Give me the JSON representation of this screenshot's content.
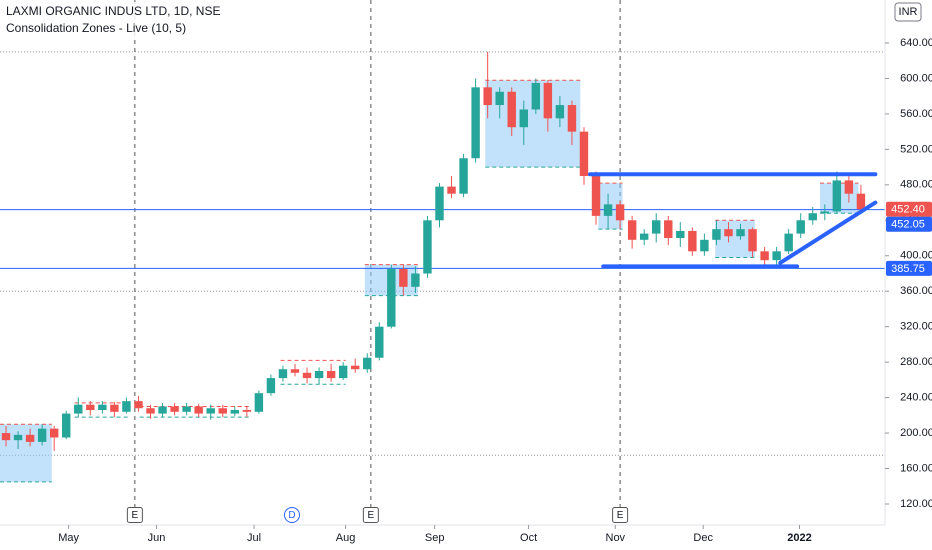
{
  "chart_data": {
    "type": "candlestick",
    "title": "LAXMI ORGANIC INDUS LTD, 1D, NSE",
    "subtitle": "Consolidation Zones - Live (10, 5)",
    "currency": "INR",
    "up_color": "#26a69a",
    "down_color": "#ef5350",
    "x": [
      0,
      1,
      2,
      3,
      4,
      5,
      6,
      7,
      8,
      9,
      10,
      11,
      12,
      13,
      14,
      15,
      16,
      17,
      18,
      19,
      20,
      21,
      22,
      23,
      24,
      25,
      26,
      27,
      28,
      29,
      30,
      31,
      32,
      33,
      34,
      35,
      36,
      37,
      38,
      39,
      40,
      41,
      42,
      43,
      44,
      45,
      46,
      47,
      48,
      49,
      50,
      51,
      52,
      53,
      54,
      55,
      56,
      57,
      58,
      59,
      60,
      61,
      62,
      63,
      64,
      65,
      66,
      67,
      68,
      69,
      70,
      71
    ],
    "open": [
      200,
      192,
      198,
      190,
      205,
      195,
      222,
      232,
      226,
      232,
      224,
      236,
      228,
      222,
      230,
      224,
      230,
      222,
      228,
      222,
      226,
      224,
      245,
      262,
      272,
      268,
      262,
      270,
      262,
      276,
      272,
      285,
      320,
      385,
      365,
      380,
      440,
      478,
      470,
      510,
      590,
      570,
      585,
      545,
      565,
      595,
      555,
      570,
      540,
      490,
      445,
      458,
      440,
      418,
      425,
      440,
      420,
      428,
      405,
      418,
      430,
      422,
      430,
      405,
      395,
      405,
      425,
      440,
      448,
      450,
      485,
      470
    ],
    "high": [
      208,
      202,
      205,
      210,
      208,
      225,
      240,
      236,
      236,
      235,
      240,
      242,
      232,
      234,
      234,
      234,
      233,
      232,
      232,
      230,
      230,
      248,
      266,
      276,
      278,
      274,
      274,
      278,
      280,
      284,
      290,
      325,
      390,
      390,
      388,
      445,
      482,
      490,
      515,
      600,
      630,
      590,
      590,
      575,
      600,
      598,
      580,
      575,
      545,
      495,
      470,
      462,
      445,
      430,
      448,
      445,
      438,
      432,
      425,
      440,
      438,
      436,
      432,
      410,
      410,
      430,
      448,
      455,
      458,
      495,
      490,
      480
    ],
    "low": [
      185,
      182,
      185,
      186,
      180,
      193,
      218,
      220,
      222,
      218,
      222,
      224,
      216,
      218,
      220,
      220,
      218,
      215,
      218,
      219,
      218,
      222,
      242,
      258,
      264,
      256,
      255,
      258,
      260,
      268,
      268,
      282,
      318,
      355,
      358,
      375,
      432,
      465,
      466,
      505,
      555,
      555,
      535,
      525,
      560,
      540,
      545,
      525,
      480,
      435,
      430,
      430,
      408,
      412,
      415,
      412,
      410,
      400,
      400,
      412,
      415,
      418,
      398,
      388,
      390,
      402,
      420,
      435,
      440,
      448,
      460,
      448
    ],
    "close": [
      192,
      198,
      190,
      205,
      195,
      222,
      232,
      226,
      232,
      224,
      236,
      228,
      222,
      230,
      224,
      230,
      222,
      228,
      222,
      226,
      224,
      245,
      262,
      272,
      268,
      262,
      270,
      262,
      276,
      272,
      285,
      320,
      385,
      365,
      380,
      440,
      478,
      470,
      510,
      590,
      570,
      585,
      545,
      565,
      595,
      555,
      570,
      540,
      490,
      445,
      458,
      440,
      418,
      425,
      440,
      420,
      428,
      405,
      418,
      430,
      422,
      430,
      405,
      395,
      405,
      425,
      440,
      448,
      450,
      485,
      470,
      452.4
    ],
    "xlim": [
      -0.5,
      73
    ],
    "ylim": [
      96.3,
      688.5
    ],
    "xticks": [
      {
        "value": 5.2,
        "label": "May"
      },
      {
        "value": 12.5,
        "label": "Jun"
      },
      {
        "value": 20.6,
        "label": "Jul"
      },
      {
        "value": 28.2,
        "label": "Aug"
      },
      {
        "value": 35.6,
        "label": "Sep"
      },
      {
        "value": 43.4,
        "label": "Oct"
      },
      {
        "value": 50.6,
        "label": "Nov"
      },
      {
        "value": 57.9,
        "label": "Dec"
      },
      {
        "value": 65.9,
        "label": "2022"
      }
    ],
    "yticks": [
      {
        "value": 120,
        "label": "120.00"
      },
      {
        "value": 160,
        "label": "160.00"
      },
      {
        "value": 200,
        "label": "200.00"
      },
      {
        "value": 240,
        "label": "240.00"
      },
      {
        "value": 280,
        "label": "280.00"
      },
      {
        "value": 320,
        "label": "320.00"
      },
      {
        "value": 360,
        "label": "360.00"
      },
      {
        "value": 400,
        "label": "400.00"
      },
      {
        "value": 440,
        "label": "440.00"
      },
      {
        "value": 480,
        "label": "480.00"
      },
      {
        "value": 520,
        "label": "520.00"
      },
      {
        "value": 560,
        "label": "560.00"
      },
      {
        "value": 600,
        "label": "600.00"
      },
      {
        "value": 640,
        "label": "640.00"
      }
    ],
    "price_lines": [
      {
        "value": 452.4,
        "label": "452.40",
        "color": "#ef5350",
        "line": false
      },
      {
        "value": 452.05,
        "label": "452.05",
        "color": "#2962ff",
        "line": true
      },
      {
        "value": 385.75,
        "label": "385.75",
        "color": "#2962ff",
        "line": true
      }
    ],
    "dotted_levels": [
      630,
      360,
      175
    ],
    "events": [
      {
        "x": 10.7,
        "label": "E",
        "divider": true
      },
      {
        "x": 23.75,
        "label": "D",
        "divider": false
      },
      {
        "x": 30.3,
        "label": "E",
        "divider": true
      },
      {
        "x": 51.0,
        "label": "E",
        "divider": true
      }
    ],
    "zones": [
      {
        "x0": -0.5,
        "x1": 3.8,
        "top": 210,
        "bottom": 145,
        "filled": true
      },
      {
        "x0": 5.7,
        "x1": 10.3,
        "top": 234,
        "bottom": 218,
        "filled": false
      },
      {
        "x0": 11.1,
        "x1": 20.3,
        "top": 230,
        "bottom": 218,
        "filled": false
      },
      {
        "x0": 22.8,
        "x1": 28.2,
        "top": 282,
        "bottom": 255,
        "filled": false
      },
      {
        "x0": 29.8,
        "x1": 34.2,
        "top": 390,
        "bottom": 355,
        "filled": true
      },
      {
        "x0": 39.8,
        "x1": 47.7,
        "top": 598,
        "bottom": 500,
        "filled": true
      },
      {
        "x0": 49.2,
        "x1": 51.2,
        "top": 482,
        "bottom": 430,
        "filled": true
      },
      {
        "x0": 58.9,
        "x1": 62.2,
        "top": 440,
        "bottom": 398,
        "filled": true
      },
      {
        "x0": 67.6,
        "x1": 70.8,
        "top": 482,
        "bottom": 448,
        "filled": true
      }
    ],
    "trend_lines": [
      {
        "x": [
          48.5,
          72.2
        ],
        "y": [
          492,
          492
        ]
      },
      {
        "x": [
          49.6,
          65.7
        ],
        "y": [
          388,
          388
        ]
      },
      {
        "x": [
          64.3,
          72.2
        ],
        "y": [
          392,
          460
        ]
      }
    ]
  }
}
